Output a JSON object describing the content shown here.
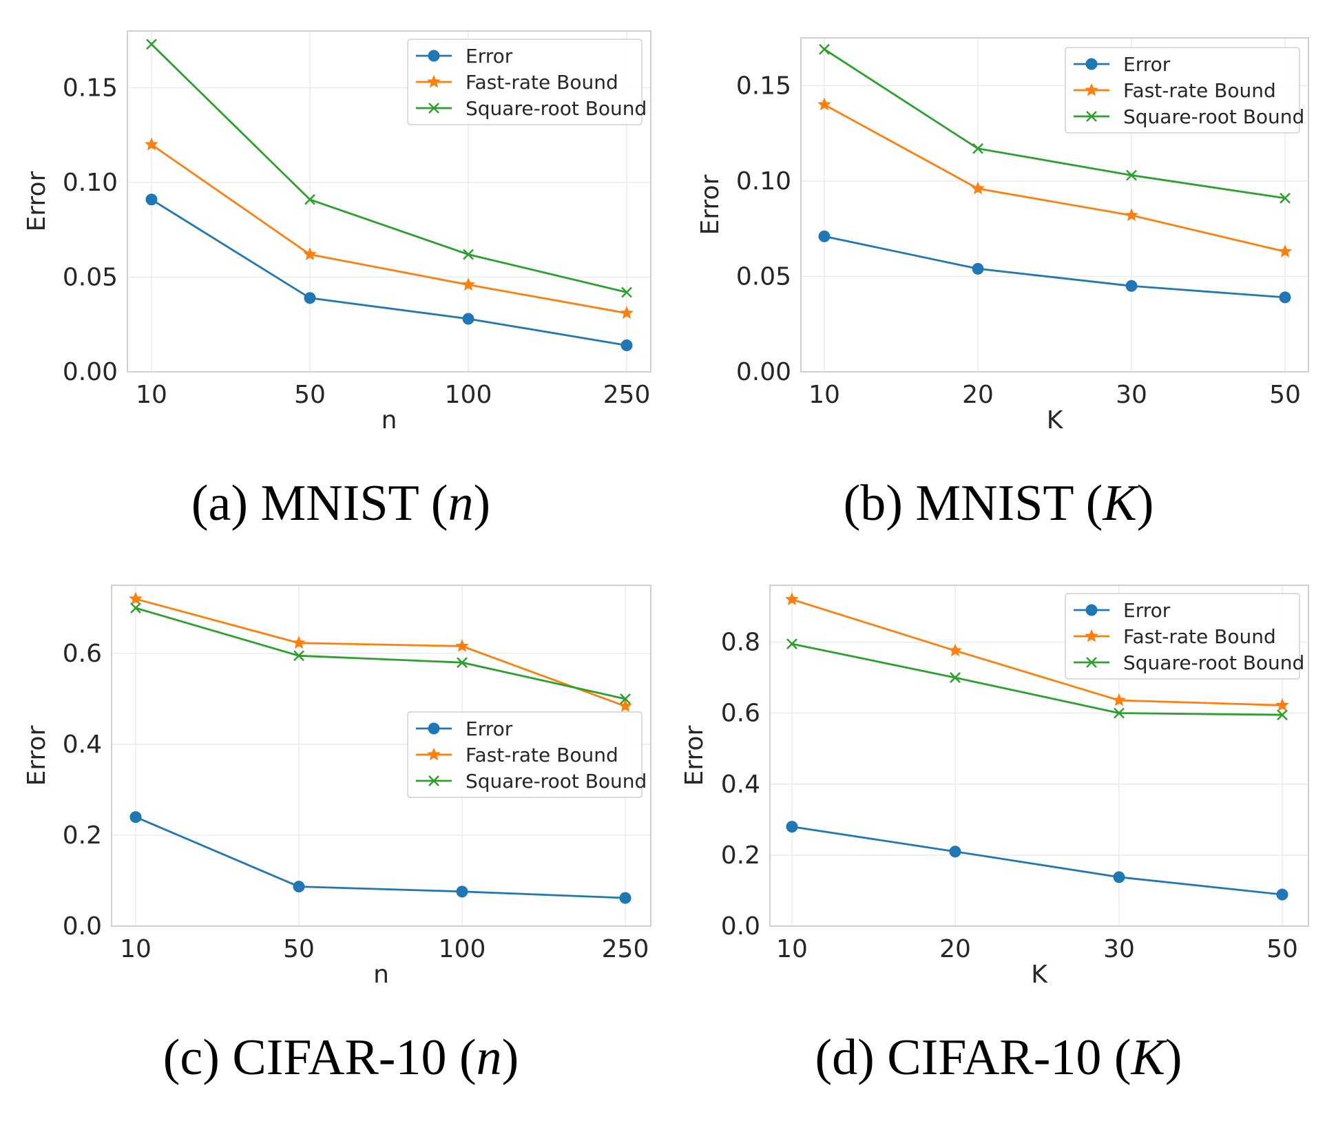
{
  "colors": {
    "error": "#1f77b4",
    "fast": "#ff7f0e",
    "sqrt": "#2ca02c",
    "grid": "#ebebeb",
    "frame": "#d0d0d0"
  },
  "chart_data": [
    {
      "type": "line",
      "caption": {
        "prefix": "(a) MNIST (",
        "var": "n",
        "suffix": ")"
      },
      "xlabel": "n",
      "ylabel": "Error",
      "categories": [
        "10",
        "50",
        "100",
        "250"
      ],
      "ylim": [
        0,
        0.18
      ],
      "yticks": [
        0.0,
        0.05,
        0.1,
        0.15
      ],
      "ytick_labels": [
        "0.00",
        "0.05",
        "0.10",
        "0.15"
      ],
      "legend_position": "top-right",
      "series": [
        {
          "name": "Error",
          "marker": "circle",
          "values": [
            0.091,
            0.039,
            0.028,
            0.014
          ]
        },
        {
          "name": "Fast-rate Bound",
          "marker": "star",
          "values": [
            0.12,
            0.062,
            0.046,
            0.031
          ]
        },
        {
          "name": "Square-root Bound",
          "marker": "x",
          "values": [
            0.173,
            0.091,
            0.062,
            0.042
          ]
        }
      ]
    },
    {
      "type": "line",
      "caption": {
        "prefix": "(b) MNIST (",
        "var": "K",
        "suffix": ")"
      },
      "xlabel": "K",
      "ylabel": "Error",
      "categories": [
        "10",
        "20",
        "30",
        "50"
      ],
      "ylim": [
        0,
        0.175
      ],
      "yticks": [
        0.0,
        0.05,
        0.1,
        0.15
      ],
      "ytick_labels": [
        "0.00",
        "0.05",
        "0.10",
        "0.15"
      ],
      "legend_position": "top-right",
      "series": [
        {
          "name": "Error",
          "marker": "circle",
          "values": [
            0.071,
            0.054,
            0.045,
            0.039
          ]
        },
        {
          "name": "Fast-rate Bound",
          "marker": "star",
          "values": [
            0.14,
            0.096,
            0.082,
            0.063
          ]
        },
        {
          "name": "Square-root Bound",
          "marker": "x",
          "values": [
            0.169,
            0.117,
            0.103,
            0.091
          ]
        }
      ]
    },
    {
      "type": "line",
      "caption": {
        "prefix": "(c) CIFAR-10 (",
        "var": "n",
        "suffix": ")"
      },
      "xlabel": "n",
      "ylabel": "Error",
      "categories": [
        "10",
        "50",
        "100",
        "250"
      ],
      "ylim": [
        0,
        0.75
      ],
      "yticks": [
        0.0,
        0.2,
        0.4,
        0.6
      ],
      "ytick_labels": [
        "0.0",
        "0.2",
        "0.4",
        "0.6"
      ],
      "legend_position": "center-right",
      "series": [
        {
          "name": "Error",
          "marker": "circle",
          "values": [
            0.24,
            0.087,
            0.076,
            0.062
          ]
        },
        {
          "name": "Fast-rate Bound",
          "marker": "star",
          "values": [
            0.72,
            0.623,
            0.616,
            0.484
          ]
        },
        {
          "name": "Square-root Bound",
          "marker": "x",
          "values": [
            0.7,
            0.595,
            0.58,
            0.5
          ]
        }
      ]
    },
    {
      "type": "line",
      "caption": {
        "prefix": "(d) CIFAR-10 (",
        "var": "K",
        "suffix": ")"
      },
      "xlabel": "K",
      "ylabel": "Error",
      "categories": [
        "10",
        "20",
        "30",
        "50"
      ],
      "ylim": [
        0,
        0.96
      ],
      "yticks": [
        0.0,
        0.2,
        0.4,
        0.6,
        0.8
      ],
      "ytick_labels": [
        "0.0",
        "0.2",
        "0.4",
        "0.6",
        "0.8"
      ],
      "legend_position": "top-right",
      "series": [
        {
          "name": "Error",
          "marker": "circle",
          "values": [
            0.28,
            0.21,
            0.138,
            0.089
          ]
        },
        {
          "name": "Fast-rate Bound",
          "marker": "star",
          "values": [
            0.92,
            0.776,
            0.636,
            0.622
          ]
        },
        {
          "name": "Square-root Bound",
          "marker": "x",
          "values": [
            0.795,
            0.7,
            0.6,
            0.595
          ]
        }
      ]
    }
  ]
}
